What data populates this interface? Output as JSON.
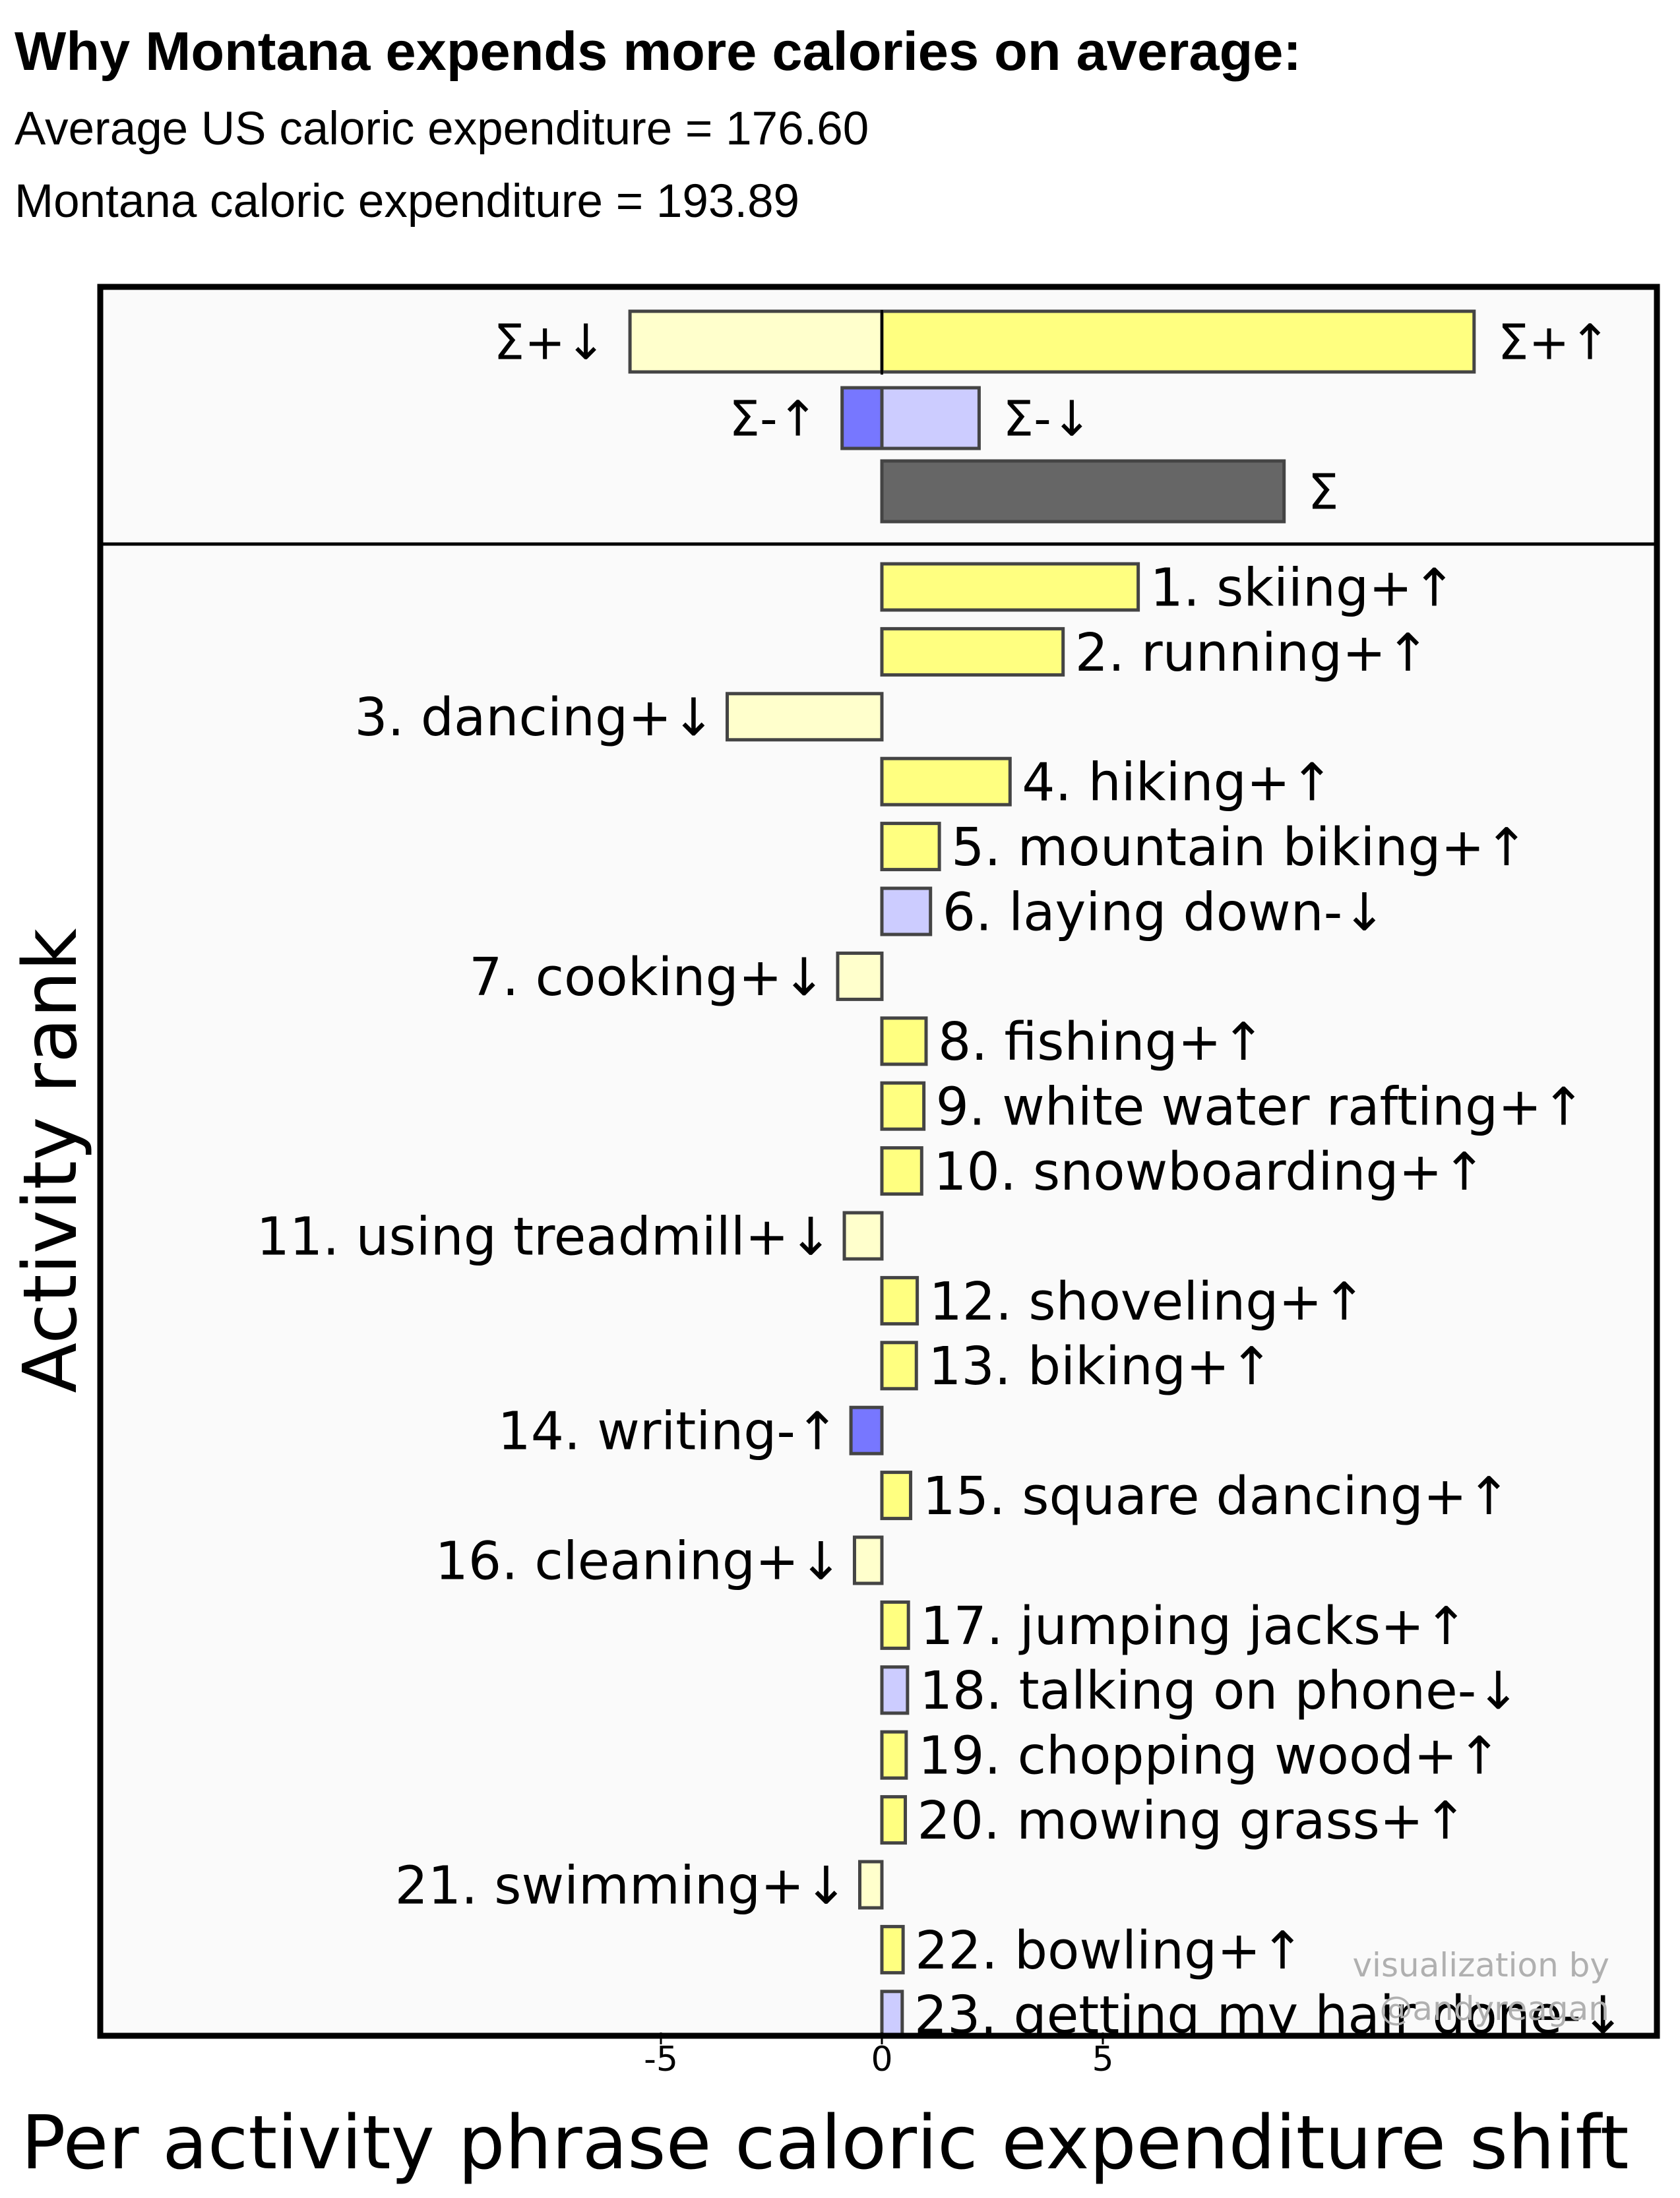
{
  "header": {
    "title": "Why Montana expends more calories on average:",
    "subtitle_us": "Average US caloric expenditure = 176.60",
    "subtitle_mt": "Montana caloric expenditure = 193.89"
  },
  "credit": {
    "line1": "visualization by",
    "line2": "@andyreagan"
  },
  "colors": {
    "pos_up": "#ffff80",
    "pos_down": "#ffffcc",
    "neg_up": "#7777ff",
    "neg_down": "#ccccff",
    "sum": "#666666",
    "plot_bg": "#fafafa"
  },
  "chart_data": {
    "type": "bar",
    "orientation": "horizontal",
    "xlabel": "Per activity phrase caloric expenditure shift",
    "ylabel": "Activity rank",
    "xticks": [
      -5,
      0,
      5
    ],
    "xlim": [
      -17.5,
      17.5
    ],
    "summary": [
      {
        "label": "Σ+↓",
        "value": -5.7,
        "kind": "pos_down"
      },
      {
        "label": "Σ+↑",
        "value": 13.4,
        "kind": "pos_up"
      },
      {
        "label": "Σ-↑",
        "value": -0.9,
        "kind": "neg_up"
      },
      {
        "label": "Σ-↓",
        "value": 2.2,
        "kind": "neg_down"
      },
      {
        "label": "Σ",
        "value": 9.1,
        "kind": "sum"
      }
    ],
    "activities": [
      {
        "label": "1. skiing+↑",
        "value": 5.8,
        "kind": "pos_up"
      },
      {
        "label": "2. running+↑",
        "value": 4.1,
        "kind": "pos_up"
      },
      {
        "label": "3. dancing+↓",
        "value": -3.5,
        "kind": "pos_down"
      },
      {
        "label": "4. hiking+↑",
        "value": 2.9,
        "kind": "pos_up"
      },
      {
        "label": "5. mountain biking+↑",
        "value": 1.3,
        "kind": "pos_up"
      },
      {
        "label": "6. laying down-↓",
        "value": 1.1,
        "kind": "neg_down"
      },
      {
        "label": "7. cooking+↓",
        "value": -1.0,
        "kind": "pos_down"
      },
      {
        "label": "8. fishing+↑",
        "value": 1.0,
        "kind": "pos_up"
      },
      {
        "label": "9. white water rafting+↑",
        "value": 0.95,
        "kind": "pos_up"
      },
      {
        "label": "10. snowboarding+↑",
        "value": 0.9,
        "kind": "pos_up"
      },
      {
        "label": "11. using treadmill+↓",
        "value": -0.85,
        "kind": "pos_down"
      },
      {
        "label": "12. shoveling+↑",
        "value": 0.8,
        "kind": "pos_up"
      },
      {
        "label": "13. biking+↑",
        "value": 0.78,
        "kind": "pos_up"
      },
      {
        "label": "14. writing-↑",
        "value": -0.7,
        "kind": "neg_up"
      },
      {
        "label": "15. square dancing+↑",
        "value": 0.65,
        "kind": "pos_up"
      },
      {
        "label": "16. cleaning+↓",
        "value": -0.62,
        "kind": "pos_down"
      },
      {
        "label": "17. jumping jacks+↑",
        "value": 0.6,
        "kind": "pos_up"
      },
      {
        "label": "18. talking on phone-↓",
        "value": 0.58,
        "kind": "neg_down"
      },
      {
        "label": "19. chopping wood+↑",
        "value": 0.55,
        "kind": "pos_up"
      },
      {
        "label": "20. mowing grass+↑",
        "value": 0.53,
        "kind": "pos_up"
      },
      {
        "label": "21. swimming+↓",
        "value": -0.5,
        "kind": "pos_down"
      },
      {
        "label": "22. bowling+↑",
        "value": 0.48,
        "kind": "pos_up"
      },
      {
        "label": "23. getting my hair done-↓",
        "value": 0.46,
        "kind": "neg_down"
      }
    ]
  }
}
